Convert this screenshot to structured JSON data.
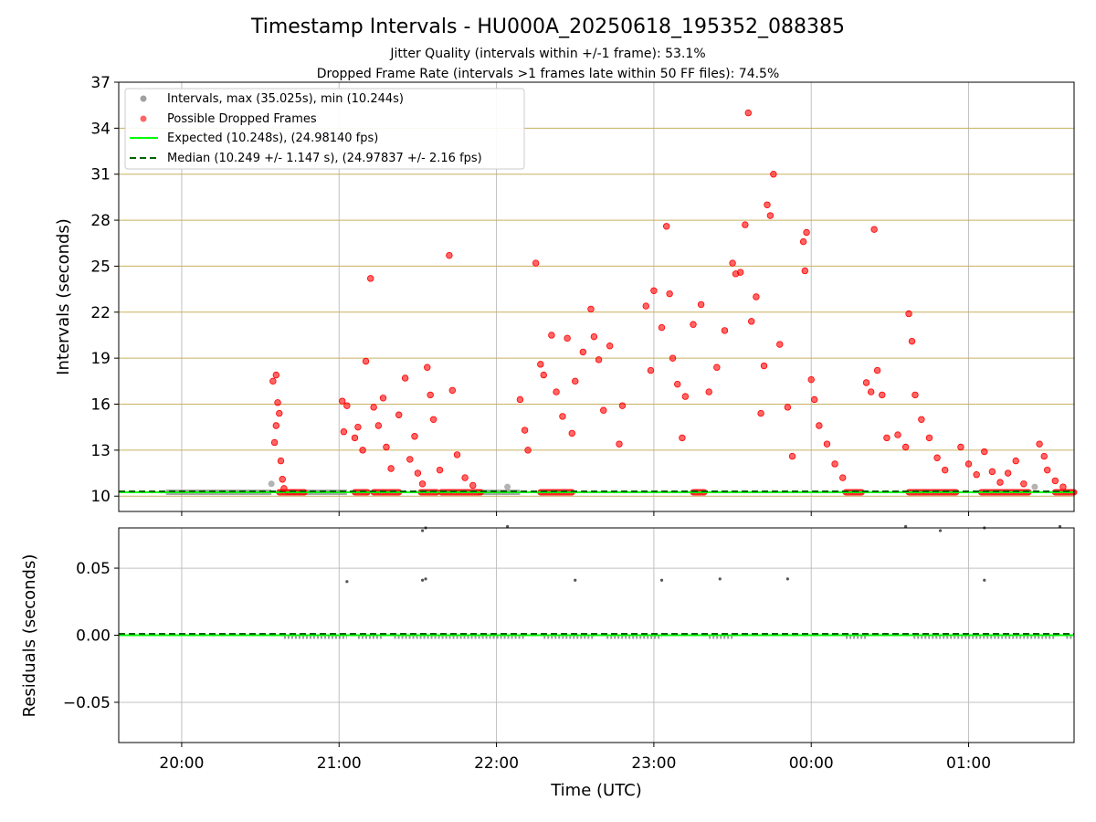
{
  "figure": {
    "title": "Timestamp Intervals - HU000A_20250618_195352_088385",
    "subtitle_1": "Jitter Quality (intervals within +/-1 frame): 53.1%",
    "subtitle_2": "Dropped Frame Rate (intervals >1 frames late within 50 FF files): 74.5%"
  },
  "colors": {
    "intervals": "#a0a0a0",
    "dropped": "#ff0000",
    "expected": "#00ff00",
    "median": "#006400",
    "grid_top": "#c8b060",
    "grid": "#c0c0c0",
    "residuals": "#555555"
  },
  "chart_data": [
    {
      "type": "scatter",
      "panel": "top",
      "ylabel": "Intervals (seconds)",
      "xlabel": "",
      "ylim": [
        9,
        37
      ],
      "yticks": [
        "10",
        "13",
        "16",
        "19",
        "22",
        "25",
        "28",
        "31",
        "34",
        "37"
      ],
      "xlim_hours": [
        19.6,
        25.67
      ],
      "grid": true,
      "legend_position": "upper-left",
      "legend": [
        "Intervals, max (35.025s), min (10.244s)",
        "Possible Dropped Frames",
        "Expected (10.248s), (24.98140 fps)",
        "Median (10.249 +/- 1.147 s), (24.97837 +/- 2.16 fps)"
      ],
      "expected_value": 10.248,
      "median_value": 10.249,
      "max_interval": 35.025,
      "min_interval": 10.244,
      "dropped_frame_points": [
        [
          20.58,
          17.5
        ],
        [
          20.6,
          17.9
        ],
        [
          20.61,
          16.1
        ],
        [
          20.62,
          15.4
        ],
        [
          20.6,
          14.6
        ],
        [
          20.59,
          13.5
        ],
        [
          20.63,
          12.3
        ],
        [
          20.64,
          11.1
        ],
        [
          20.65,
          10.5
        ],
        [
          21.02,
          16.2
        ],
        [
          21.03,
          14.2
        ],
        [
          21.05,
          15.9
        ],
        [
          21.1,
          13.8
        ],
        [
          21.12,
          14.5
        ],
        [
          21.15,
          13.0
        ],
        [
          21.17,
          18.8
        ],
        [
          21.2,
          24.2
        ],
        [
          21.22,
          15.8
        ],
        [
          21.25,
          14.6
        ],
        [
          21.28,
          16.4
        ],
        [
          21.3,
          13.2
        ],
        [
          21.33,
          11.8
        ],
        [
          21.38,
          15.3
        ],
        [
          21.42,
          17.7
        ],
        [
          21.45,
          12.4
        ],
        [
          21.48,
          13.9
        ],
        [
          21.5,
          11.5
        ],
        [
          21.53,
          10.8
        ],
        [
          21.56,
          18.4
        ],
        [
          21.58,
          16.6
        ],
        [
          21.6,
          15.0
        ],
        [
          21.64,
          11.7
        ],
        [
          21.7,
          25.7
        ],
        [
          21.72,
          16.9
        ],
        [
          21.75,
          12.7
        ],
        [
          21.8,
          11.2
        ],
        [
          21.85,
          10.7
        ],
        [
          22.15,
          16.3
        ],
        [
          22.18,
          14.3
        ],
        [
          22.2,
          13.0
        ],
        [
          22.25,
          25.2
        ],
        [
          22.28,
          18.6
        ],
        [
          22.3,
          17.9
        ],
        [
          22.35,
          20.5
        ],
        [
          22.38,
          16.8
        ],
        [
          22.42,
          15.2
        ],
        [
          22.45,
          20.3
        ],
        [
          22.48,
          14.1
        ],
        [
          22.5,
          17.5
        ],
        [
          22.55,
          19.4
        ],
        [
          22.6,
          22.2
        ],
        [
          22.62,
          20.4
        ],
        [
          22.65,
          18.9
        ],
        [
          22.68,
          15.6
        ],
        [
          22.72,
          19.8
        ],
        [
          22.78,
          13.4
        ],
        [
          22.8,
          15.9
        ],
        [
          22.95,
          22.4
        ],
        [
          22.98,
          18.2
        ],
        [
          23.0,
          23.4
        ],
        [
          23.05,
          21.0
        ],
        [
          23.08,
          27.6
        ],
        [
          23.1,
          23.2
        ],
        [
          23.12,
          19.0
        ],
        [
          23.15,
          17.3
        ],
        [
          23.18,
          13.8
        ],
        [
          23.2,
          16.5
        ],
        [
          23.25,
          21.2
        ],
        [
          23.3,
          22.5
        ],
        [
          23.35,
          16.8
        ],
        [
          23.4,
          18.4
        ],
        [
          23.45,
          20.8
        ],
        [
          23.5,
          25.2
        ],
        [
          23.52,
          24.5
        ],
        [
          23.55,
          24.6
        ],
        [
          23.58,
          27.7
        ],
        [
          23.6,
          35.0
        ],
        [
          23.62,
          21.4
        ],
        [
          23.65,
          23.0
        ],
        [
          23.68,
          15.4
        ],
        [
          23.7,
          18.5
        ],
        [
          23.72,
          29.0
        ],
        [
          23.74,
          28.3
        ],
        [
          23.76,
          31.0
        ],
        [
          23.8,
          19.9
        ],
        [
          23.85,
          15.8
        ],
        [
          23.88,
          12.6
        ],
        [
          23.95,
          26.6
        ],
        [
          23.96,
          24.7
        ],
        [
          23.97,
          27.2
        ],
        [
          24.0,
          17.6
        ],
        [
          24.02,
          16.3
        ],
        [
          24.05,
          14.6
        ],
        [
          24.1,
          13.4
        ],
        [
          24.15,
          12.1
        ],
        [
          24.2,
          11.2
        ],
        [
          24.35,
          17.4
        ],
        [
          24.38,
          16.8
        ],
        [
          24.4,
          27.4
        ],
        [
          24.42,
          18.2
        ],
        [
          24.45,
          16.6
        ],
        [
          24.48,
          13.8
        ],
        [
          24.55,
          14.0
        ],
        [
          24.6,
          13.2
        ],
        [
          24.62,
          21.9
        ],
        [
          24.64,
          20.1
        ],
        [
          24.66,
          16.6
        ],
        [
          24.7,
          15.0
        ],
        [
          24.75,
          13.8
        ],
        [
          24.8,
          12.5
        ],
        [
          24.85,
          11.7
        ],
        [
          24.95,
          13.2
        ],
        [
          25.0,
          12.1
        ],
        [
          25.05,
          11.4
        ],
        [
          25.1,
          12.9
        ],
        [
          25.15,
          11.6
        ],
        [
          25.2,
          10.9
        ],
        [
          25.25,
          11.5
        ],
        [
          25.3,
          12.3
        ],
        [
          25.35,
          10.8
        ],
        [
          25.45,
          13.4
        ],
        [
          25.48,
          12.6
        ],
        [
          25.5,
          11.7
        ],
        [
          25.55,
          11.0
        ],
        [
          25.6,
          10.6
        ]
      ],
      "interval_points": [
        [
          20.57,
          10.8
        ],
        [
          22.07,
          10.6
        ],
        [
          25.42,
          10.6
        ]
      ]
    },
    {
      "type": "scatter",
      "panel": "bottom",
      "ylabel": "Residuals (seconds)",
      "xlabel": "Time (UTC)",
      "ylim": [
        -0.08,
        0.08
      ],
      "yticks": [
        "−0.05",
        "0.00",
        "0.05"
      ],
      "xticks": [
        "20:00",
        "21:00",
        "22:00",
        "23:00",
        "00:00",
        "01:00"
      ],
      "xtick_hours": [
        20,
        21,
        22,
        23,
        24,
        25
      ],
      "grid": true,
      "expected_value": 0.0,
      "median_value": 0.001,
      "residual_points": [
        [
          21.05,
          0.04
        ],
        [
          21.53,
          0.041
        ],
        [
          21.55,
          0.042
        ],
        [
          22.5,
          0.041
        ],
        [
          23.05,
          0.041
        ],
        [
          23.42,
          0.042
        ],
        [
          23.85,
          0.042
        ],
        [
          25.1,
          0.041
        ],
        [
          21.53,
          0.078
        ],
        [
          21.55,
          0.08
        ],
        [
          22.07,
          0.081
        ],
        [
          24.6,
          0.081
        ],
        [
          24.82,
          0.078
        ],
        [
          25.1,
          0.08
        ],
        [
          25.58,
          0.081
        ]
      ]
    }
  ]
}
